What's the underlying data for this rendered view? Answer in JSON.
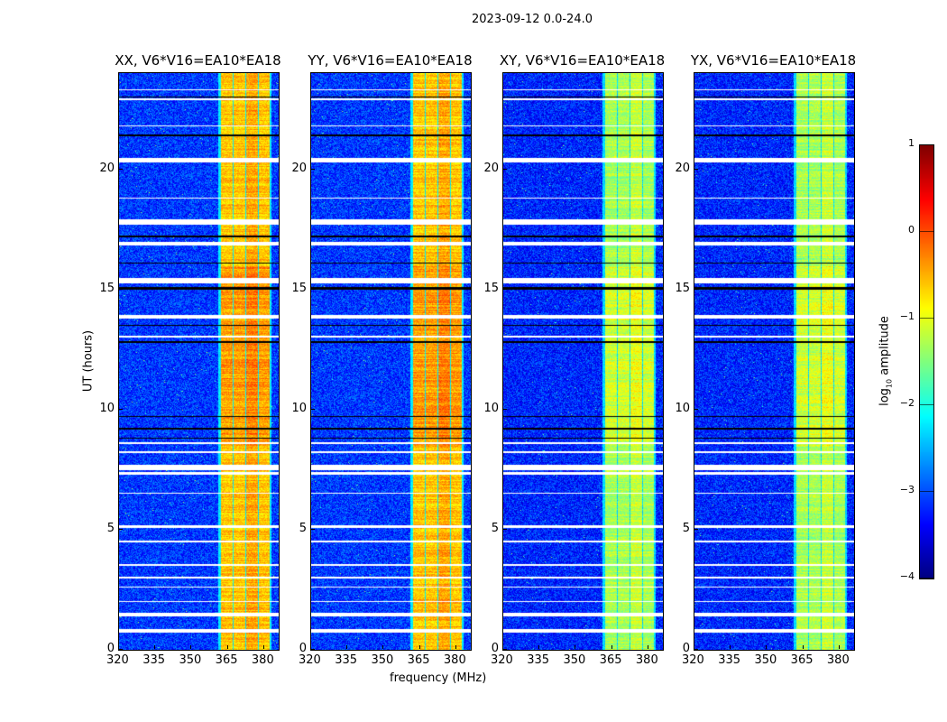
{
  "chart_data": {
    "type": "heatmap",
    "title": "2023-09-12 0.0-24.0",
    "xlabel": "frequency (MHz)",
    "ylabel": "UT (hours)",
    "xlim": [
      320,
      386
    ],
    "ylim": [
      0,
      24
    ],
    "xticks": [
      320,
      335,
      350,
      365,
      380
    ],
    "yticks": [
      0,
      5,
      10,
      15,
      20
    ],
    "colorbar": {
      "label_prefix": "log",
      "label_sub": "10",
      "label_suffix": " amplitude",
      "range": [
        -4,
        1
      ],
      "ticks": [
        "1",
        "0",
        "−1",
        "−2",
        "−3",
        "−4"
      ],
      "colormap": "jet"
    },
    "panels": [
      {
        "title": "XX, V6*V16=EA10*EA18",
        "background_level": -3.1,
        "band_level": -0.6
      },
      {
        "title": "YY, V6*V16=EA10*EA18",
        "background_level": -3.1,
        "band_level": -0.6
      },
      {
        "title": "XY, V6*V16=EA10*EA18",
        "background_level": -3.2,
        "band_level": -1.3
      },
      {
        "title": "YX, V6*V16=EA10*EA18",
        "background_level": -3.2,
        "band_level": -1.3
      }
    ],
    "band_segments_mhz": [
      [
        362,
        366.8
      ],
      [
        367.2,
        372
      ],
      [
        372.4,
        377.3
      ],
      [
        377.7,
        382.2
      ]
    ],
    "flagged_hours": [
      [
        0.75,
        0.9
      ],
      [
        1.4,
        1.55
      ],
      [
        2.0,
        2.05
      ],
      [
        2.6,
        2.65
      ],
      [
        3.0,
        3.05
      ],
      [
        3.5,
        3.6
      ],
      [
        4.5,
        4.55
      ],
      [
        5.1,
        5.2
      ],
      [
        6.5,
        6.55
      ],
      [
        7.3,
        7.4
      ],
      [
        7.5,
        7.7
      ],
      [
        8.2,
        8.3
      ],
      [
        8.6,
        8.65
      ],
      [
        13.0,
        13.1
      ],
      [
        13.8,
        13.95
      ],
      [
        15.25,
        15.5
      ],
      [
        16.85,
        17.0
      ],
      [
        17.7,
        17.95
      ],
      [
        18.8,
        18.85
      ],
      [
        20.3,
        20.5
      ],
      [
        21.8,
        21.85
      ],
      [
        22.9,
        22.95
      ],
      [
        23.3,
        23.35
      ]
    ],
    "dark_hours": [
      [
        8.8,
        8.85
      ],
      [
        9.2,
        9.25
      ],
      [
        9.7,
        9.75
      ],
      [
        12.8,
        12.85
      ],
      [
        13.5,
        13.55
      ],
      [
        15.0,
        15.1
      ],
      [
        16.1,
        16.15
      ],
      [
        17.2,
        17.25
      ],
      [
        21.4,
        21.45
      ],
      [
        23.0,
        23.05
      ]
    ]
  }
}
